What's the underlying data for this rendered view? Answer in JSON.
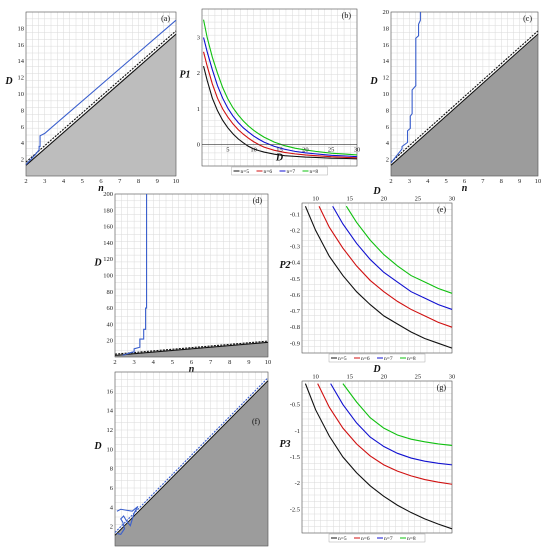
{
  "chart_data": [
    {
      "id": "a",
      "type": "line",
      "panel_label": "(a)",
      "xlabel": "n",
      "ylabel": "D",
      "xlim": [
        2,
        10
      ],
      "ylim": [
        0,
        20
      ],
      "xticks": [
        "2",
        "3",
        "4",
        "5",
        "6",
        "7",
        "8",
        "9",
        "10"
      ],
      "yticks": [
        "2",
        "4",
        "6",
        "8",
        "10",
        "12",
        "14",
        "16",
        "18"
      ],
      "ytick_values": [
        2,
        4,
        6,
        8,
        10,
        12,
        14,
        16,
        18
      ],
      "grid": true,
      "shaded_region": {
        "below": [
          [
            2,
            1.2
          ],
          [
            10,
            17.3
          ]
        ],
        "color": "#bdbdbd"
      },
      "series": [
        {
          "color": "#111111",
          "x": [
            2,
            10
          ],
          "y": [
            1.3,
            17.3
          ]
        },
        {
          "color": "#111111",
          "dash": true,
          "x": [
            2,
            10
          ],
          "y": [
            1.7,
            17.7
          ]
        },
        {
          "color": "#3a5fcd",
          "x": [
            2,
            2.5,
            2.7,
            2.7,
            2.75,
            2.75,
            3,
            10
          ],
          "y": [
            1.4,
            2.6,
            3.2,
            3.6,
            3.6,
            4.9,
            5.2,
            19
          ]
        }
      ]
    },
    {
      "id": "b",
      "type": "line",
      "panel_label": "(b)",
      "xlabel": "D",
      "ylabel": "P1",
      "xlim": [
        0,
        30
      ],
      "ylim": [
        -0.6,
        3.8
      ],
      "xticks": [
        "5",
        "10",
        "15",
        "20",
        "25",
        "30"
      ],
      "xtick_values": [
        5,
        10,
        15,
        20,
        25,
        30
      ],
      "yticks": [
        "0",
        "1",
        "2",
        "3"
      ],
      "ytick_values": [
        0,
        1,
        2,
        3
      ],
      "grid": true,
      "legend": [
        "n=5",
        "n=6",
        "n=7",
        "n=8"
      ],
      "series": [
        {
          "name": "n=5",
          "color": "#111111",
          "x": [
            0.3,
            1,
            2,
            3,
            4,
            5,
            6,
            7,
            8,
            9,
            10,
            11,
            12,
            14,
            16,
            18,
            20,
            22,
            25,
            28,
            30
          ],
          "y": [
            2.2,
            1.8,
            1.3,
            0.95,
            0.68,
            0.47,
            0.3,
            0.16,
            0.05,
            -0.05,
            -0.12,
            -0.17,
            -0.21,
            -0.27,
            -0.31,
            -0.33,
            -0.35,
            -0.36,
            -0.38,
            -0.39,
            -0.4
          ]
        },
        {
          "name": "n=6",
          "color": "#d01010",
          "x": [
            0.3,
            1,
            2,
            3,
            4,
            5,
            6,
            7,
            8,
            9,
            10,
            11,
            12,
            14,
            16,
            18,
            20,
            22,
            25,
            28,
            30
          ],
          "y": [
            2.6,
            2.2,
            1.7,
            1.3,
            1.0,
            0.77,
            0.58,
            0.42,
            0.29,
            0.18,
            0.08,
            0.0,
            -0.07,
            -0.16,
            -0.22,
            -0.26,
            -0.29,
            -0.31,
            -0.34,
            -0.36,
            -0.37
          ]
        },
        {
          "name": "n=7",
          "color": "#1010d0",
          "x": [
            0.3,
            1,
            2,
            3,
            4,
            5,
            6,
            7,
            8,
            9,
            10,
            11,
            12,
            14,
            16,
            18,
            20,
            22,
            25,
            28,
            30
          ],
          "y": [
            3.0,
            2.6,
            2.1,
            1.65,
            1.3,
            1.02,
            0.8,
            0.62,
            0.47,
            0.35,
            0.24,
            0.15,
            0.07,
            -0.05,
            -0.13,
            -0.19,
            -0.23,
            -0.26,
            -0.3,
            -0.32,
            -0.34
          ]
        },
        {
          "name": "n=8",
          "color": "#10c010",
          "x": [
            0.3,
            1,
            2,
            3,
            4,
            5,
            6,
            7,
            8,
            9,
            10,
            11,
            12,
            14,
            16,
            18,
            20,
            22,
            25,
            28,
            30
          ],
          "y": [
            3.5,
            3.0,
            2.45,
            2.0,
            1.6,
            1.28,
            1.03,
            0.83,
            0.66,
            0.52,
            0.4,
            0.3,
            0.21,
            0.07,
            -0.03,
            -0.1,
            -0.15,
            -0.19,
            -0.24,
            -0.27,
            -0.29
          ]
        }
      ]
    },
    {
      "id": "c",
      "type": "line",
      "panel_label": "(c)",
      "xlabel": "n",
      "ylabel": "D",
      "xlim": [
        2,
        10
      ],
      "ylim": [
        0,
        20
      ],
      "xticks": [
        "2",
        "3",
        "4",
        "5",
        "6",
        "7",
        "8",
        "9",
        "10"
      ],
      "yticks": [
        "2",
        "4",
        "6",
        "8",
        "10",
        "12",
        "14",
        "16",
        "18",
        "20"
      ],
      "ytick_values": [
        2,
        4,
        6,
        8,
        10,
        12,
        14,
        16,
        18,
        20
      ],
      "grid": true,
      "shaded_region": {
        "below": [
          [
            2,
            1.2
          ],
          [
            10,
            17.2
          ]
        ],
        "color": "#9c9c9c"
      },
      "series": [
        {
          "color": "#111111",
          "x": [
            2,
            10
          ],
          "y": [
            1.3,
            17.3
          ]
        },
        {
          "color": "#111111",
          "dash": true,
          "x": [
            2,
            10
          ],
          "y": [
            1.7,
            17.7
          ]
        },
        {
          "color": "#3a5fcd",
          "x": [
            2,
            2.6,
            2.6,
            2.9,
            2.9,
            3.05,
            3.05,
            3.15,
            3.15,
            3.35,
            3.35,
            3.5,
            3.5,
            3.6,
            3.6
          ],
          "y": [
            1.6,
            3.3,
            3.6,
            4.1,
            5.5,
            5.8,
            7.3,
            7.6,
            10.5,
            11.0,
            16.8,
            17.1,
            18.5,
            19.0,
            20
          ]
        }
      ]
    },
    {
      "id": "d",
      "type": "line",
      "panel_label": "(d)",
      "xlabel": "n",
      "ylabel": "D",
      "xlim": [
        2,
        10
      ],
      "ylim": [
        0,
        200
      ],
      "xticks": [
        "2",
        "3",
        "4",
        "5",
        "6",
        "7",
        "8",
        "9",
        "10"
      ],
      "yticks": [
        "20",
        "40",
        "60",
        "80",
        "100",
        "120",
        "140",
        "160",
        "180",
        "200"
      ],
      "ytick_values": [
        20,
        40,
        60,
        80,
        100,
        120,
        140,
        160,
        180,
        200
      ],
      "grid": true,
      "shaded_region": {
        "below": [
          [
            2,
            1.5
          ],
          [
            10,
            17.5
          ]
        ],
        "color": "#9c9c9c"
      },
      "series": [
        {
          "color": "#111111",
          "x": [
            2,
            10
          ],
          "y": [
            2,
            18
          ]
        },
        {
          "color": "#111111",
          "dash": true,
          "x": [
            2,
            10
          ],
          "y": [
            3.5,
            19.5
          ]
        },
        {
          "color": "#3a5fcd",
          "x": [
            2.4,
            2.9,
            3.0,
            3.0,
            3.3,
            3.3,
            3.5,
            3.5,
            3.6,
            3.6,
            3.65,
            3.65
          ],
          "y": [
            2,
            6,
            6,
            10,
            12,
            22,
            22,
            34,
            34,
            60,
            60,
            200
          ]
        }
      ]
    },
    {
      "id": "e",
      "type": "line",
      "panel_label": "(e)",
      "xlabel": "D",
      "ylabel": "P2",
      "xlim": [
        8,
        30
      ],
      "ylim": [
        -0.96,
        -0.03
      ],
      "xticks": [
        "10",
        "15",
        "20",
        "25",
        "30"
      ],
      "xtick_values": [
        10,
        15,
        20,
        25,
        30
      ],
      "yticks": [
        "-0.1",
        "-0.2",
        "-0.3",
        "-0.4",
        "-0.5",
        "-0.6",
        "-0.7",
        "-0.8",
        "-0.9"
      ],
      "ytick_values": [
        -0.1,
        -0.2,
        -0.3,
        -0.4,
        -0.5,
        -0.6,
        -0.7,
        -0.8,
        -0.9
      ],
      "grid": true,
      "legend": [
        "n=5",
        "n=6",
        "n=7",
        "n=8"
      ],
      "series": [
        {
          "name": "n=5",
          "color": "#111111",
          "x": [
            8.5,
            10,
            12,
            14,
            16,
            18,
            20,
            22,
            24,
            26,
            28,
            30
          ],
          "y": [
            -0.05,
            -0.2,
            -0.36,
            -0.48,
            -0.58,
            -0.66,
            -0.73,
            -0.78,
            -0.83,
            -0.87,
            -0.9,
            -0.93
          ]
        },
        {
          "name": "n=6",
          "color": "#d01010",
          "x": [
            10.5,
            12,
            14,
            16,
            18,
            20,
            22,
            24,
            26,
            28,
            30
          ],
          "y": [
            -0.05,
            -0.18,
            -0.31,
            -0.42,
            -0.51,
            -0.58,
            -0.64,
            -0.69,
            -0.73,
            -0.77,
            -0.8
          ]
        },
        {
          "name": "n=7",
          "color": "#1010d0",
          "x": [
            12.5,
            14,
            16,
            18,
            20,
            22,
            24,
            26,
            28,
            30
          ],
          "y": [
            -0.05,
            -0.16,
            -0.28,
            -0.38,
            -0.46,
            -0.52,
            -0.58,
            -0.62,
            -0.66,
            -0.69
          ]
        },
        {
          "name": "n=8",
          "color": "#10c010",
          "x": [
            14.5,
            16,
            18,
            20,
            22,
            24,
            26,
            28,
            30
          ],
          "y": [
            -0.05,
            -0.15,
            -0.26,
            -0.35,
            -0.42,
            -0.48,
            -0.52,
            -0.56,
            -0.59
          ]
        }
      ]
    },
    {
      "id": "f",
      "type": "line",
      "panel_label": "(f)",
      "xlabel": "n",
      "ylabel": "D",
      "xlim": [
        2,
        10
      ],
      "ylim": [
        0,
        18
      ],
      "xticks": [
        "2",
        "3",
        "4",
        "5",
        "6",
        "7",
        "8",
        "9",
        "10"
      ],
      "yticks": [
        "2",
        "4",
        "6",
        "8",
        "10",
        "12",
        "14",
        "16"
      ],
      "ytick_values": [
        2,
        4,
        6,
        8,
        10,
        12,
        14,
        16
      ],
      "grid": true,
      "shaded_region": {
        "below": [
          [
            2,
            1
          ],
          [
            10,
            17
          ]
        ],
        "color": "#9c9c9c"
      },
      "series": [
        {
          "color": "#111111",
          "x": [
            2,
            10
          ],
          "y": [
            1.1,
            17.1
          ]
        },
        {
          "color": "#3a5fcd",
          "dash": true,
          "x": [
            2,
            10
          ],
          "y": [
            1.4,
            17.4
          ]
        },
        {
          "color": "#3a5fcd",
          "x": [
            2.1,
            2.3,
            2.5,
            2.4,
            2.3,
            2.45,
            2.6,
            2.8,
            3.0,
            3.2,
            2.9,
            2.6,
            2.3,
            2.1
          ],
          "y": [
            1.3,
            1.2,
            1.8,
            2.5,
            2.8,
            3.1,
            2.6,
            2.1,
            3.4,
            4.1,
            3.6,
            3.7,
            3.8,
            3.6
          ]
        }
      ]
    },
    {
      "id": "g",
      "type": "line",
      "panel_label": "(g)",
      "xlabel": "D",
      "ylabel": "P3",
      "xlim": [
        8,
        30
      ],
      "ylim": [
        -2.95,
        -0.05
      ],
      "xticks": [
        "10",
        "15",
        "20",
        "25",
        "30"
      ],
      "xtick_values": [
        10,
        15,
        20,
        25,
        30
      ],
      "yticks": [
        "-0.5",
        "-1",
        "-1.5",
        "-2",
        "-2.5"
      ],
      "ytick_values": [
        -0.5,
        -1,
        -1.5,
        -2,
        -2.5
      ],
      "grid": true,
      "legend": [
        "n=5",
        "n=6",
        "n=7",
        "n=8"
      ],
      "series": [
        {
          "name": "n=5",
          "color": "#111111",
          "x": [
            8.5,
            10,
            12,
            14,
            16,
            18,
            20,
            22,
            24,
            26,
            28,
            30
          ],
          "y": [
            -0.1,
            -0.6,
            -1.1,
            -1.5,
            -1.8,
            -2.05,
            -2.25,
            -2.42,
            -2.56,
            -2.68,
            -2.78,
            -2.87
          ]
        },
        {
          "name": "n=6",
          "color": "#d01010",
          "x": [
            10.3,
            12,
            14,
            16,
            18,
            20,
            22,
            24,
            26,
            28,
            30
          ],
          "y": [
            -0.1,
            -0.55,
            -0.95,
            -1.25,
            -1.48,
            -1.65,
            -1.77,
            -1.86,
            -1.93,
            -1.98,
            -2.02
          ]
        },
        {
          "name": "n=7",
          "color": "#1010d0",
          "x": [
            12.2,
            14,
            16,
            18,
            20,
            22,
            24,
            26,
            28,
            30
          ],
          "y": [
            -0.1,
            -0.5,
            -0.85,
            -1.12,
            -1.3,
            -1.43,
            -1.52,
            -1.58,
            -1.62,
            -1.65
          ]
        },
        {
          "name": "n=8",
          "color": "#10c010",
          "x": [
            14.0,
            16,
            18,
            20,
            22,
            24,
            26,
            28,
            30
          ],
          "y": [
            -0.1,
            -0.45,
            -0.75,
            -0.95,
            -1.08,
            -1.16,
            -1.21,
            -1.25,
            -1.28
          ]
        }
      ]
    }
  ]
}
